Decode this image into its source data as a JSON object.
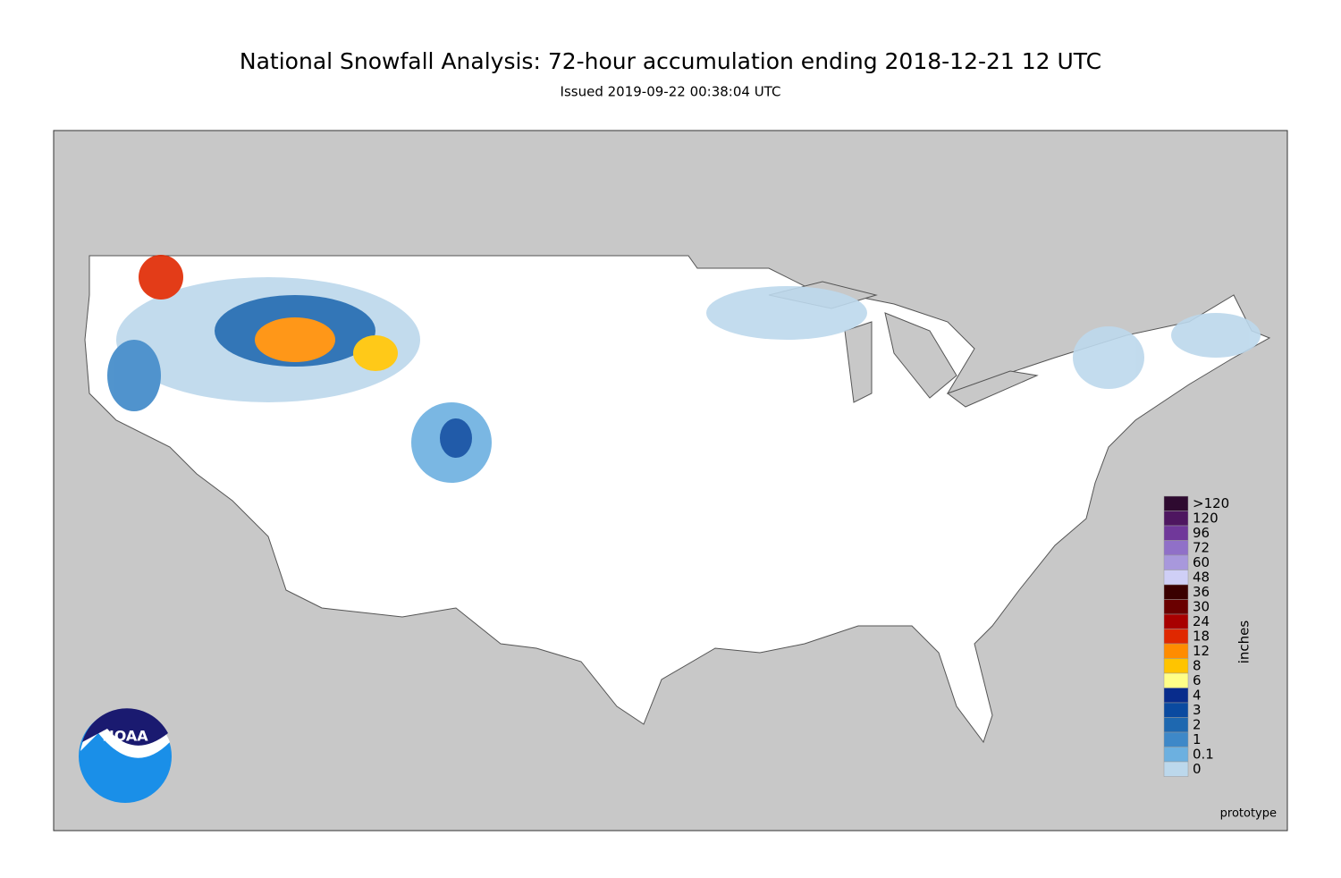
{
  "title": "National Snowfall Analysis: 72-hour accumulation ending 2018-12-21 12 UTC",
  "subtitle": "Issued 2019-09-22 00:38:04 UTC",
  "legend": {
    "unit": "inches",
    "items": [
      {
        "label": ">120",
        "color": "#2e0a30"
      },
      {
        "label": "120",
        "color": "#4e1660"
      },
      {
        "label": "96",
        "color": "#70389a"
      },
      {
        "label": "72",
        "color": "#9070c8"
      },
      {
        "label": "60",
        "color": "#a898dc"
      },
      {
        "label": "48",
        "color": "#cfcff6"
      },
      {
        "label": "36",
        "color": "#3a0000"
      },
      {
        "label": "30",
        "color": "#6a0000"
      },
      {
        "label": "24",
        "color": "#a80000"
      },
      {
        "label": "18",
        "color": "#e02800"
      },
      {
        "label": "12",
        "color": "#ff8c00"
      },
      {
        "label": "8",
        "color": "#ffc400"
      },
      {
        "label": "6",
        "color": "#ffff88"
      },
      {
        "label": "4",
        "color": "#082c8c"
      },
      {
        "label": "3",
        "color": "#0a4aa0"
      },
      {
        "label": "2",
        "color": "#1e68b0"
      },
      {
        "label": "1",
        "color": "#3e88c8"
      },
      {
        "label": "0.1",
        "color": "#6cb0e0"
      },
      {
        "label": "0",
        "color": "#bcd8ec"
      }
    ]
  },
  "note": "prototype",
  "logo": "NOAA"
}
